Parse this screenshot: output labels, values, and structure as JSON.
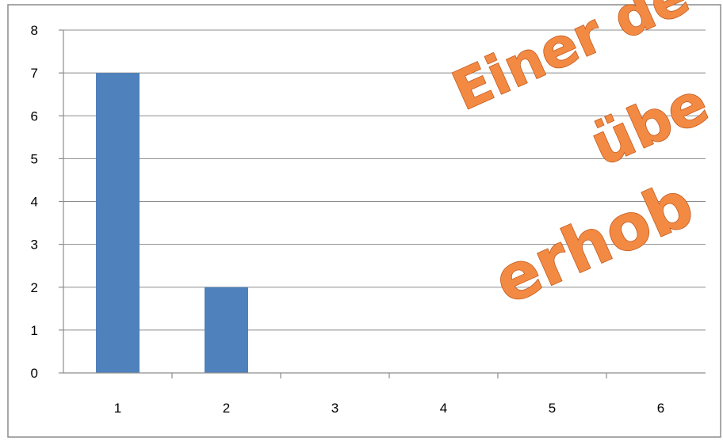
{
  "chart_data": {
    "type": "bar",
    "categories": [
      "1",
      "2",
      "3",
      "4",
      "5",
      "6"
    ],
    "values": [
      7,
      2,
      0,
      0,
      0,
      0
    ],
    "title": "",
    "xlabel": "",
    "ylabel": "",
    "ylim": [
      0,
      8
    ],
    "yticks": [
      "0",
      "1",
      "2",
      "3",
      "4",
      "5",
      "6",
      "7",
      "8"
    ],
    "grid": true,
    "bar_color": "#4f81bd",
    "grid_color": "#8c8c8c"
  },
  "overlay_text": {
    "line1": "Einer de",
    "line2": "übe",
    "line3": "erhob",
    "color": "#f28a43"
  }
}
